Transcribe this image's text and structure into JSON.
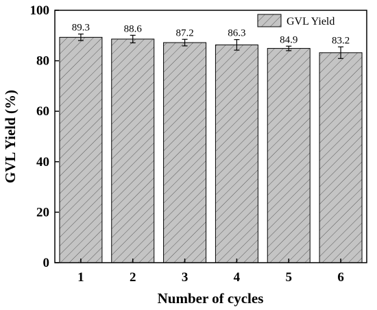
{
  "chart_data": {
    "type": "bar",
    "xlabel": "Number of cycles",
    "ylabel": "GVL Yield (%)",
    "ylim": [
      0,
      100
    ],
    "yticks": [
      0,
      20,
      40,
      60,
      80,
      100
    ],
    "categories": [
      "1",
      "2",
      "3",
      "4",
      "5",
      "6"
    ],
    "series": [
      {
        "name": "GVL Yield",
        "values": [
          89.3,
          88.6,
          87.2,
          86.3,
          84.9,
          83.2
        ],
        "errors": [
          1.3,
          1.5,
          1.3,
          2.1,
          0.9,
          2.3
        ],
        "value_labels": [
          "89.3",
          "88.6",
          "87.2",
          "86.3",
          "84.9",
          "83.2"
        ]
      }
    ],
    "legend_position": "top-right",
    "grid": false,
    "bar_fill": "#c4c4c4",
    "hatch": "diagonal"
  }
}
